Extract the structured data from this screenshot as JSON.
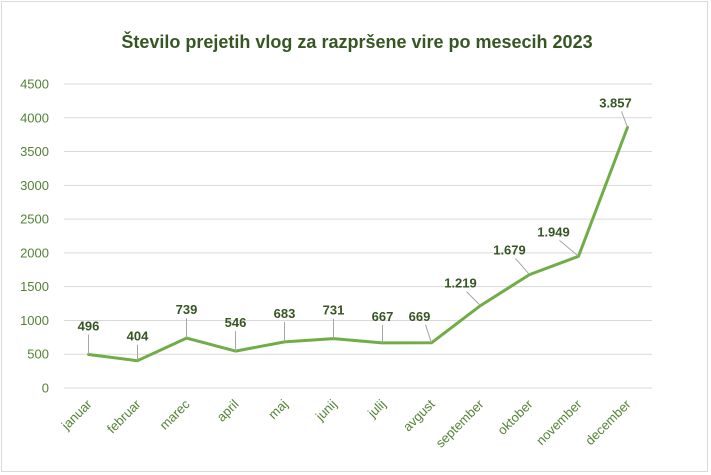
{
  "chart_data": {
    "type": "line",
    "title": "Število prejetih vlog za razpršene vire po mesecih 2023",
    "xlabel": "",
    "ylabel": "",
    "ylim": [
      0,
      4500
    ],
    "yticks": [
      0,
      500,
      1000,
      1500,
      2000,
      2500,
      3000,
      3500,
      4000,
      4500
    ],
    "grid": true,
    "legend": "none",
    "line_color": "#70ad47",
    "categories": [
      "januar",
      "februar",
      "marec",
      "april",
      "maj",
      "junij",
      "julij",
      "avgust",
      "september",
      "oktober",
      "november",
      "december"
    ],
    "values": [
      496,
      404,
      739,
      546,
      683,
      731,
      667,
      669,
      1219,
      1679,
      1949,
      3857
    ],
    "data_labels": [
      "496",
      "404",
      "739",
      "546",
      "683",
      "731",
      "667",
      "669",
      "1.219",
      "1.679",
      "1.949",
      "3.857"
    ]
  }
}
